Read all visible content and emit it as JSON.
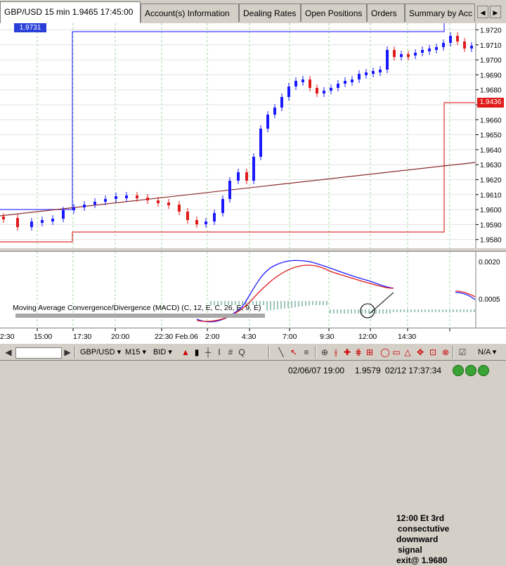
{
  "tabs": {
    "items": [
      {
        "label": "GBP/USD 15 min 1.9465 17:45:00",
        "active": true
      },
      {
        "label": "Account(s) Information"
      },
      {
        "label": "Dealing Rates"
      },
      {
        "label": "Open Positions"
      },
      {
        "label": "Orders"
      },
      {
        "label": "Summary by Acc"
      }
    ],
    "nav_left": "◀",
    "nav_right": "▶"
  },
  "chart": {
    "left_price_label": "1.9731",
    "current_price_label": "1.9436",
    "price_axis": [
      "1.9720",
      "1.9710",
      "1.9700",
      "1.9690",
      "1.9680",
      "1.9670",
      "1.9660",
      "1.9650",
      "1.9640",
      "1.9630",
      "1.9620",
      "1.9610",
      "1.9600",
      "1.9590",
      "1.9580"
    ],
    "macd_axis": [
      "0.0020",
      "0.0005"
    ],
    "macd_label": "Moving Average Convergence/Divergence (MACD) (C, 12, E, C, 26, E, 9, E)",
    "annotation_lines": [
      "12:00 Et 3rd",
      "consectutive",
      "downward",
      "signal",
      "exit@ 1.9680"
    ],
    "time_axis": [
      "2:30",
      "15:00",
      "17:30",
      "20:00",
      "22:30 Feb.06",
      "2:00",
      "4:30",
      "7:00",
      "9:30",
      "12:00",
      "14:30"
    ]
  },
  "toolbar": {
    "symbol": "GBP/USD ▾",
    "timeframe": "M15 ▾",
    "price_type": "BID ▾",
    "na": "N/A ▾"
  },
  "statusbar": {
    "cursor_time": "02/06/07 19:00",
    "cursor_price": "1.9579",
    "server_time": "02/12 17:37:34"
  },
  "colors": {
    "bull": "#1a1aff",
    "bear": "#e01b1b",
    "channel_top": "#3a3aff",
    "channel_bottom": "#e03030",
    "trend": "#8b2a2a",
    "grid": "#9fd59f"
  }
}
